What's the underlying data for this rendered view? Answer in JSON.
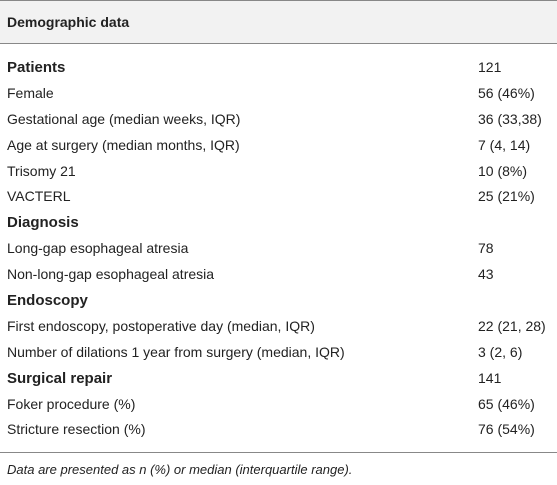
{
  "header": {
    "title": "Demographic data"
  },
  "table": {
    "sections": [
      {
        "title": "Patients",
        "value": "121",
        "rows": [
          [
            "Female",
            "56 (46%)"
          ],
          [
            "Gestational age (median weeks, IQR)",
            "36 (33,38)"
          ],
          [
            "Age at surgery (median months, IQR)",
            "7 (4, 14)"
          ],
          [
            "Trisomy 21",
            "10 (8%)"
          ],
          [
            "VACTERL",
            "25 (21%)"
          ]
        ]
      },
      {
        "title": "Diagnosis",
        "rows": [
          [
            "Long-gap esophageal atresia",
            "78"
          ],
          [
            "Non-long-gap esophageal atresia",
            "43"
          ]
        ]
      },
      {
        "title": "Endoscopy",
        "rows": [
          [
            "First endoscopy, postoperative day (median, IQR)",
            "22 (21, 28)"
          ],
          [
            "Number of dilations 1 year from surgery (median, IQR)",
            "3 (2, 6)"
          ]
        ]
      },
      {
        "title": "Surgical repair",
        "value": "141",
        "rows": [
          [
            "Foker procedure (%)",
            "65 (46%)"
          ],
          [
            "Stricture resection (%)",
            "76 (54%)"
          ]
        ]
      }
    ]
  },
  "footnote": "Data are presented as n (%) or median (interquartile range)."
}
